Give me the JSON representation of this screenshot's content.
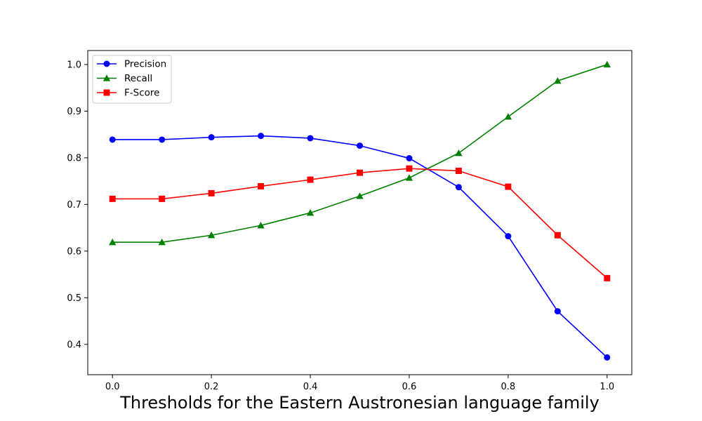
{
  "chart_data": {
    "type": "line",
    "xlabel": "Thresholds for the Eastern Austronesian language family",
    "ylabel": "",
    "x": [
      0.0,
      0.1,
      0.2,
      0.3,
      0.4,
      0.5,
      0.6,
      0.7,
      0.8,
      0.9,
      1.0
    ],
    "xlim": [
      -0.05,
      1.05
    ],
    "ylim": [
      0.335,
      1.03
    ],
    "xticks": [
      0.0,
      0.2,
      0.4,
      0.6,
      0.8,
      1.0
    ],
    "xtick_labels": [
      "0.0",
      "0.2",
      "0.4",
      "0.6",
      "0.8",
      "1.0"
    ],
    "yticks": [
      0.4,
      0.5,
      0.6,
      0.7,
      0.8,
      0.9,
      1.0
    ],
    "ytick_labels": [
      "0.4",
      "0.5",
      "0.6",
      "0.7",
      "0.8",
      "0.9",
      "1.0"
    ],
    "grid": false,
    "legend_position": "top-left",
    "series": [
      {
        "name": "Precision",
        "color": "#0000ff",
        "marker": "circle",
        "values": [
          0.839,
          0.839,
          0.844,
          0.847,
          0.842,
          0.826,
          0.799,
          0.737,
          0.632,
          0.471,
          0.372
        ]
      },
      {
        "name": "Recall",
        "color": "#008000",
        "marker": "triangle",
        "values": [
          0.619,
          0.619,
          0.634,
          0.655,
          0.682,
          0.718,
          0.757,
          0.81,
          0.888,
          0.965,
          1.0
        ]
      },
      {
        "name": "F-Score",
        "color": "#ff0000",
        "marker": "square",
        "values": [
          0.712,
          0.712,
          0.724,
          0.739,
          0.753,
          0.768,
          0.777,
          0.772,
          0.738,
          0.634,
          0.542
        ]
      }
    ]
  }
}
